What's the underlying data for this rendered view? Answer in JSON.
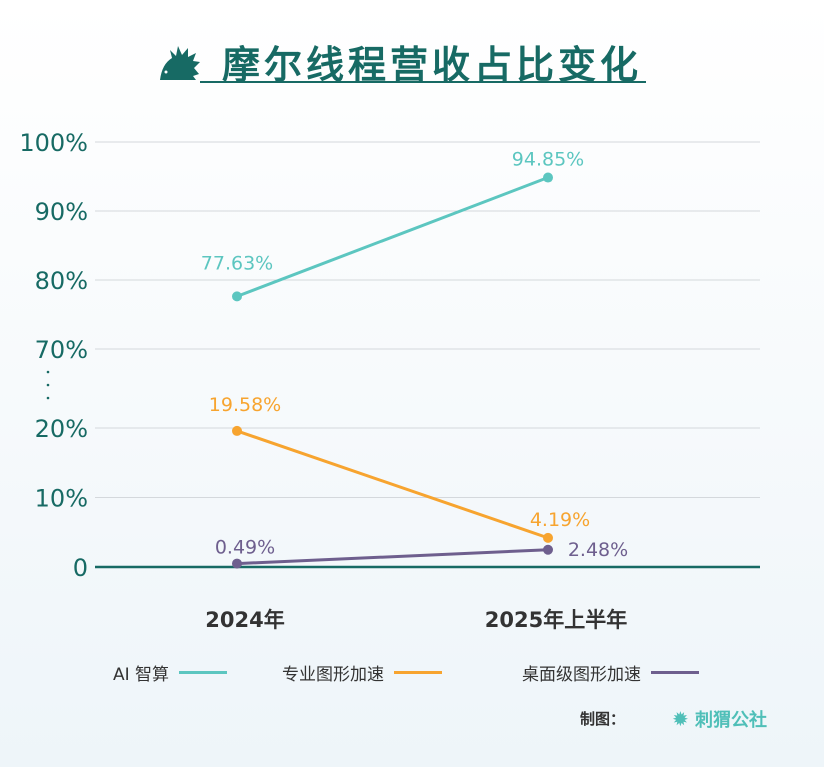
{
  "chart_data": {
    "type": "line",
    "title": "摩尔线程营收占比变化",
    "categories": [
      "2024年",
      "2025年上半年"
    ],
    "y_ticks": [
      "100%",
      "90%",
      "80%",
      "70%",
      "20%",
      "10%",
      "0"
    ],
    "y_break": [
      20,
      70
    ],
    "ylim": [
      0,
      100
    ],
    "grid": true,
    "legend_placement": "bottom",
    "series": [
      {
        "name": "AI 智算",
        "color": "#5cc6c0",
        "values": [
          77.63,
          94.85
        ],
        "labels": [
          "77.63%",
          "94.85%"
        ]
      },
      {
        "name": "专业图形加速",
        "color": "#f7a42f",
        "values": [
          19.58,
          4.19
        ],
        "labels": [
          "19.58%",
          "4.19%"
        ]
      },
      {
        "name": "桌面级图形加速",
        "color": "#6e5f8e",
        "values": [
          0.49,
          2.48
        ],
        "labels": [
          "0.49%",
          "2.48%"
        ]
      }
    ]
  },
  "credit": {
    "label": "制图：",
    "brand": "刺猬公社"
  }
}
